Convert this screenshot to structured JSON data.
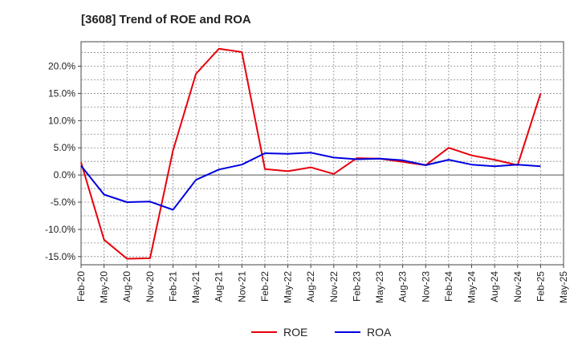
{
  "chart_data": {
    "type": "line",
    "title": "[3608]  Trend of ROE and ROA",
    "xlabel": "",
    "ylabel": "",
    "categories": [
      "Feb-20",
      "May-20",
      "Aug-20",
      "Nov-20",
      "Feb-21",
      "May-21",
      "Aug-21",
      "Nov-21",
      "Feb-22",
      "May-22",
      "Aug-22",
      "Nov-22",
      "Feb-23",
      "May-23",
      "Aug-23",
      "Nov-23",
      "Feb-24",
      "May-24",
      "Aug-24",
      "Nov-24",
      "Feb-25",
      "May-25"
    ],
    "ylim": [
      -16.5,
      24.5
    ],
    "yticks": [
      -15,
      -10,
      -5,
      0,
      5,
      10,
      15,
      20
    ],
    "ytick_labels": [
      "-15.0%",
      "-10.0%",
      "-5.0%",
      "0.0%",
      "5.0%",
      "10.0%",
      "15.0%",
      "20.0%"
    ],
    "grid": true,
    "legend_position": "bottom-center",
    "series": [
      {
        "name": "ROE",
        "color": "#e8000b",
        "values": [
          2.3,
          -11.9,
          -15.4,
          -15.3,
          4.5,
          18.6,
          23.2,
          22.6,
          1.1,
          0.7,
          1.4,
          0.2,
          3.1,
          3.0,
          2.4,
          1.8,
          5.0,
          3.6,
          2.8,
          1.8,
          15.0,
          null
        ]
      },
      {
        "name": "ROA",
        "color": "#0000e0",
        "values": [
          1.7,
          -3.6,
          -5.0,
          -4.9,
          -6.4,
          -0.9,
          1.0,
          1.9,
          4.0,
          3.9,
          4.1,
          3.2,
          2.9,
          3.0,
          2.7,
          1.8,
          2.8,
          1.9,
          1.6,
          1.9,
          1.6,
          null
        ]
      }
    ]
  }
}
